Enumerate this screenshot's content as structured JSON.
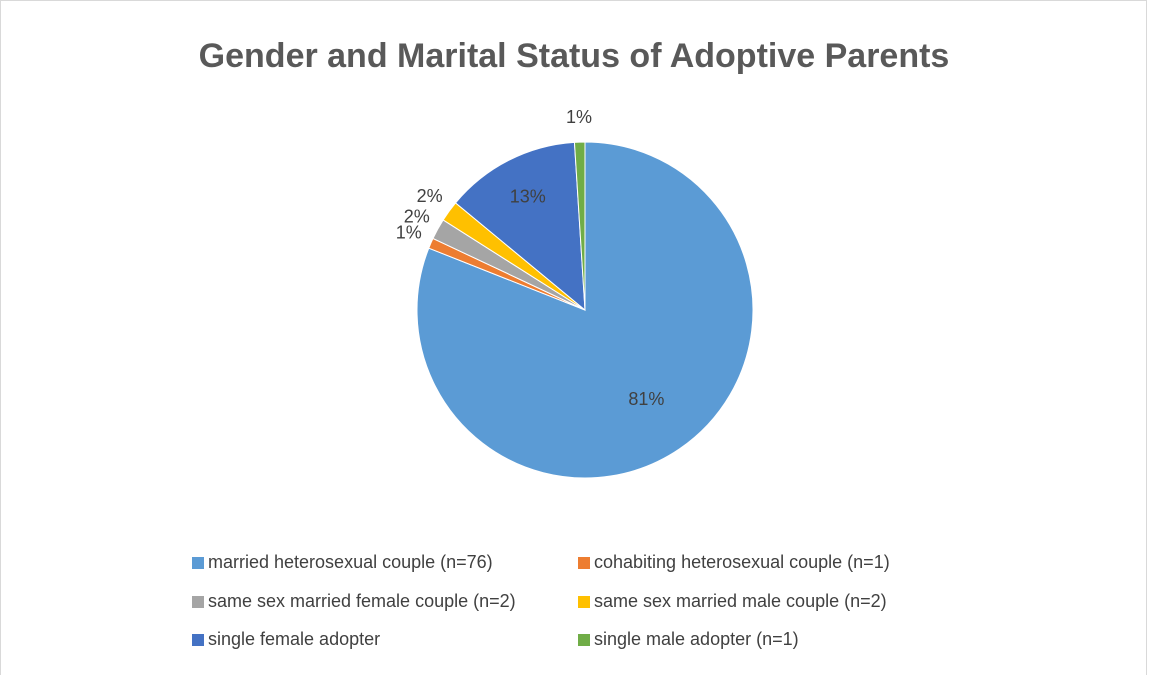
{
  "chart_data": {
    "type": "pie",
    "title": "Gender and Marital Status of Adoptive Parents",
    "categories": [
      "married heterosexual couple (n=76)",
      "cohabiting heterosexual couple (n=1)",
      "same sex married female couple (n=2)",
      "same sex married male couple (n=2)",
      "single female adopter",
      "single male adopter (n=1)"
    ],
    "values": [
      81,
      1,
      2,
      2,
      13,
      1
    ],
    "value_labels": [
      "81%",
      "1%",
      "2%",
      "2%",
      "13%",
      "1%"
    ],
    "colors": [
      "#5b9bd5",
      "#ed7d31",
      "#a5a5a5",
      "#ffc000",
      "#4472c4",
      "#70ad47"
    ],
    "legend": "bottom"
  }
}
